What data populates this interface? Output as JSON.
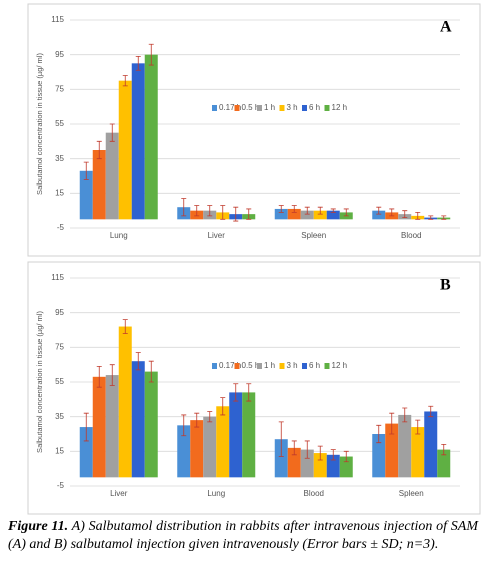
{
  "chart_data": [
    {
      "type": "bar",
      "panel": "A",
      "y_label": "Salbutamol  concentration in tissue (µg/ ml)",
      "categories": [
        "Lung",
        "Liver",
        "Spleen",
        "Blood"
      ],
      "series": [
        {
          "name": "0.17 h",
          "color": "#4a8fd6",
          "values": [
            28,
            7,
            6,
            5
          ],
          "errors": [
            5,
            5,
            2,
            2
          ]
        },
        {
          "name": "0.5 h",
          "color": "#f26b1d",
          "values": [
            40,
            5,
            6,
            4
          ],
          "errors": [
            5,
            3,
            2,
            2
          ]
        },
        {
          "name": "1 h",
          "color": "#a0a0a0",
          "values": [
            50,
            5,
            5,
            3
          ],
          "errors": [
            5,
            3,
            2,
            2
          ]
        },
        {
          "name": "3 h",
          "color": "#ffc000",
          "values": [
            80,
            4,
            5,
            2
          ],
          "errors": [
            3,
            4,
            2,
            2
          ]
        },
        {
          "name": "6 h",
          "color": "#2e62d0",
          "values": [
            90,
            3,
            5,
            1
          ],
          "errors": [
            4,
            4,
            1,
            1
          ]
        },
        {
          "name": "12 h",
          "color": "#5fb043",
          "values": [
            95,
            3,
            4,
            1
          ],
          "errors": [
            6,
            3,
            2,
            1
          ]
        }
      ],
      "ylim": [
        -5,
        115
      ],
      "yticks": [
        -5,
        15,
        35,
        55,
        75,
        95,
        115
      ],
      "grid": true
    },
    {
      "type": "bar",
      "panel": "B",
      "y_label": "Salbutamol  concentration in tissue (µg/ ml)",
      "categories": [
        "Liver",
        "Lung",
        "Blood",
        "Spleen"
      ],
      "series": [
        {
          "name": "0.17 h",
          "color": "#4a8fd6",
          "values": [
            29,
            30,
            22,
            25
          ],
          "errors": [
            8,
            6,
            10,
            5
          ]
        },
        {
          "name": "0.5 h",
          "color": "#f26b1d",
          "values": [
            58,
            33,
            17,
            31
          ],
          "errors": [
            6,
            4,
            4,
            6
          ]
        },
        {
          "name": "1 h",
          "color": "#a0a0a0",
          "values": [
            59,
            35,
            16,
            36
          ],
          "errors": [
            6,
            3,
            5,
            4
          ]
        },
        {
          "name": "3 h",
          "color": "#ffc000",
          "values": [
            87,
            41,
            14,
            29
          ],
          "errors": [
            4,
            5,
            4,
            4
          ]
        },
        {
          "name": "6 h",
          "color": "#2e62d0",
          "values": [
            67,
            49,
            13,
            38
          ],
          "errors": [
            5,
            5,
            3,
            3
          ]
        },
        {
          "name": "12 h",
          "color": "#5fb043",
          "values": [
            61,
            49,
            12,
            16
          ],
          "errors": [
            6,
            5,
            3,
            3
          ]
        }
      ],
      "ylim": [
        -5,
        115
      ],
      "yticks": [
        -5,
        15,
        35,
        55,
        75,
        95,
        115
      ],
      "grid": true
    }
  ],
  "caption": {
    "label": "Figure 11.",
    "text": " A) Salbutamol distribution in rabbits after intravenous injection of SAM (A) and B) salbutamol injection given intravenously (Error bars ± SD; n=3)."
  }
}
